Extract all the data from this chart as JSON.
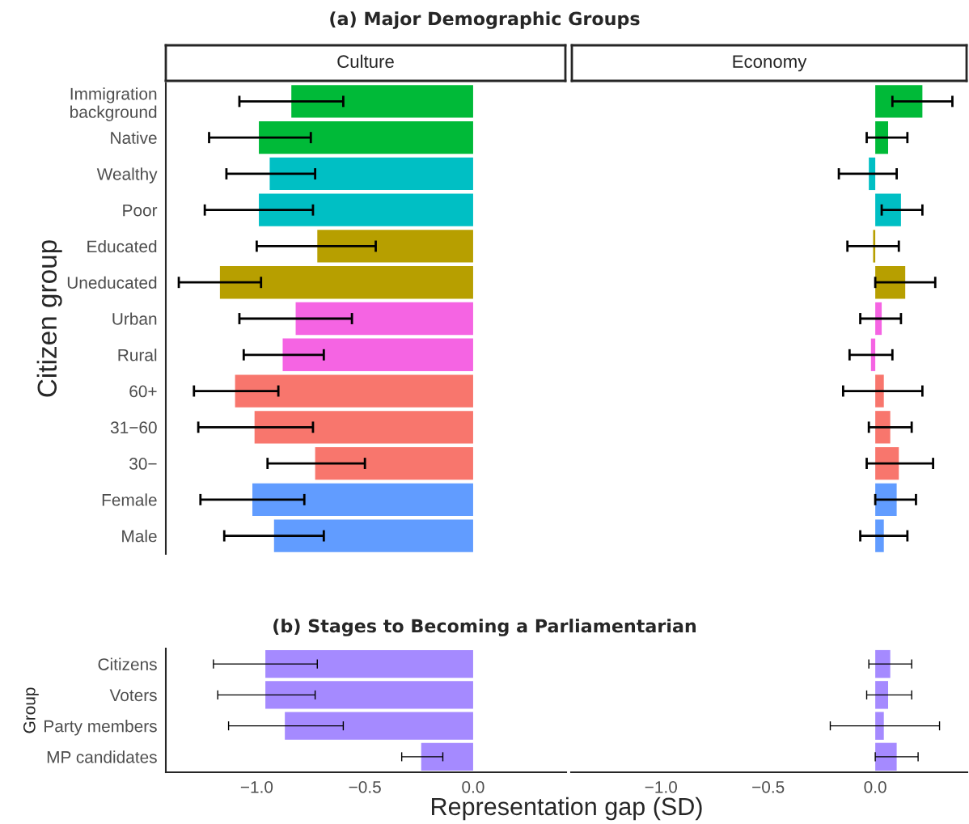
{
  "chart_data": [
    {
      "type": "bar",
      "orientation": "horizontal",
      "title": "(a) Major Demographic Groups",
      "subtitle": "Culture",
      "ylabel": "Citizen group",
      "categories": [
        "Immigration\nbackground",
        "Native",
        "Wealthy",
        "Poor",
        "Educated",
        "Uneducated",
        "Urban",
        "Rural",
        "60+",
        "31−60",
        "30−",
        "Female",
        "Male"
      ],
      "values": [
        -0.84,
        -0.99,
        -0.94,
        -0.99,
        -0.72,
        -1.17,
        -0.82,
        -0.88,
        -1.1,
        -1.01,
        -0.73,
        -1.02,
        -0.92
      ],
      "errors": [
        [
          -1.08,
          -0.6
        ],
        [
          -1.22,
          -0.75
        ],
        [
          -1.14,
          -0.73
        ],
        [
          -1.24,
          -0.74
        ],
        [
          -1.0,
          -0.45
        ],
        [
          -1.36,
          -0.98
        ],
        [
          -1.08,
          -0.56
        ],
        [
          -1.06,
          -0.69
        ],
        [
          -1.29,
          -0.9
        ],
        [
          -1.27,
          -0.74
        ],
        [
          -0.95,
          -0.5
        ],
        [
          -1.26,
          -0.78
        ],
        [
          -1.15,
          -0.69
        ]
      ],
      "colors": [
        "#00ba38",
        "#00ba38",
        "#00bfc4",
        "#00bfc4",
        "#b79f00",
        "#b79f00",
        "#f564e3",
        "#f564e3",
        "#f8766d",
        "#f8766d",
        "#f8766d",
        "#619cff",
        "#619cff"
      ],
      "xlim": [
        -1.42,
        0.43
      ],
      "tick_labels": "y",
      "grid": false
    },
    {
      "type": "bar",
      "orientation": "horizontal",
      "subtitle": "Economy",
      "categories": [
        null,
        null,
        null,
        null,
        null,
        null,
        null,
        null,
        null,
        null,
        null,
        null,
        null
      ],
      "values": [
        0.22,
        0.06,
        -0.03,
        0.12,
        -0.01,
        0.14,
        0.03,
        -0.02,
        0.04,
        0.07,
        0.11,
        0.1,
        0.04
      ],
      "errors": [
        [
          0.08,
          0.36
        ],
        [
          -0.04,
          0.15
        ],
        [
          -0.17,
          0.1
        ],
        [
          0.03,
          0.22
        ],
        [
          -0.13,
          0.11
        ],
        [
          0.0,
          0.28
        ],
        [
          -0.07,
          0.12
        ],
        [
          -0.12,
          0.08
        ],
        [
          -0.15,
          0.22
        ],
        [
          -0.03,
          0.17
        ],
        [
          -0.04,
          0.27
        ],
        [
          0.0,
          0.19
        ],
        [
          -0.07,
          0.15
        ]
      ],
      "colors": [
        "#00ba38",
        "#00ba38",
        "#00bfc4",
        "#00bfc4",
        "#b79f00",
        "#b79f00",
        "#f564e3",
        "#f564e3",
        "#f8766d",
        "#f8766d",
        "#f8766d",
        "#619cff",
        "#619cff"
      ],
      "xlim": [
        -1.42,
        0.43
      ],
      "tick_labels": false,
      "grid": false
    },
    {
      "type": "bar",
      "orientation": "horizontal",
      "title": "(b) Stages to Becoming a Parliamentarian",
      "ylabel": "Group",
      "xlabel": "Representation gap (SD)",
      "categories": [
        "Citizens",
        "Voters",
        "Party members",
        "MP candidates"
      ],
      "values": [
        -0.96,
        -0.96,
        -0.87,
        -0.24
      ],
      "errors": [
        [
          -1.2,
          -0.72
        ],
        [
          -1.18,
          -0.73
        ],
        [
          -1.13,
          -0.6
        ],
        [
          -0.33,
          -0.14
        ]
      ],
      "colors": [
        "#a58aff",
        "#a58aff",
        "#a58aff",
        "#a58aff"
      ],
      "xlim": [
        -1.42,
        0.43
      ],
      "xticks": [
        {
          "value": -1.0,
          "label": "−1.0"
        },
        {
          "value": -0.5,
          "label": "−0.5"
        },
        {
          "value": 0.0,
          "label": "0.0"
        }
      ],
      "grid": false
    },
    {
      "type": "bar",
      "orientation": "horizontal",
      "categories": [
        null,
        null,
        null,
        null
      ],
      "values": [
        0.07,
        0.06,
        0.04,
        0.1
      ],
      "errors": [
        [
          -0.03,
          0.17
        ],
        [
          -0.04,
          0.17
        ],
        [
          -0.21,
          0.3
        ],
        [
          0.0,
          0.2
        ]
      ],
      "colors": [
        "#a58aff",
        "#a58aff",
        "#a58aff",
        "#a58aff"
      ],
      "xlim": [
        -1.42,
        0.43
      ],
      "xticks": [
        {
          "value": -1.0,
          "label": "−1.0"
        },
        {
          "value": -0.5,
          "label": "−0.5"
        },
        {
          "value": 0.0,
          "label": "0.0"
        }
      ],
      "tick_labels": "x",
      "grid": false
    }
  ]
}
